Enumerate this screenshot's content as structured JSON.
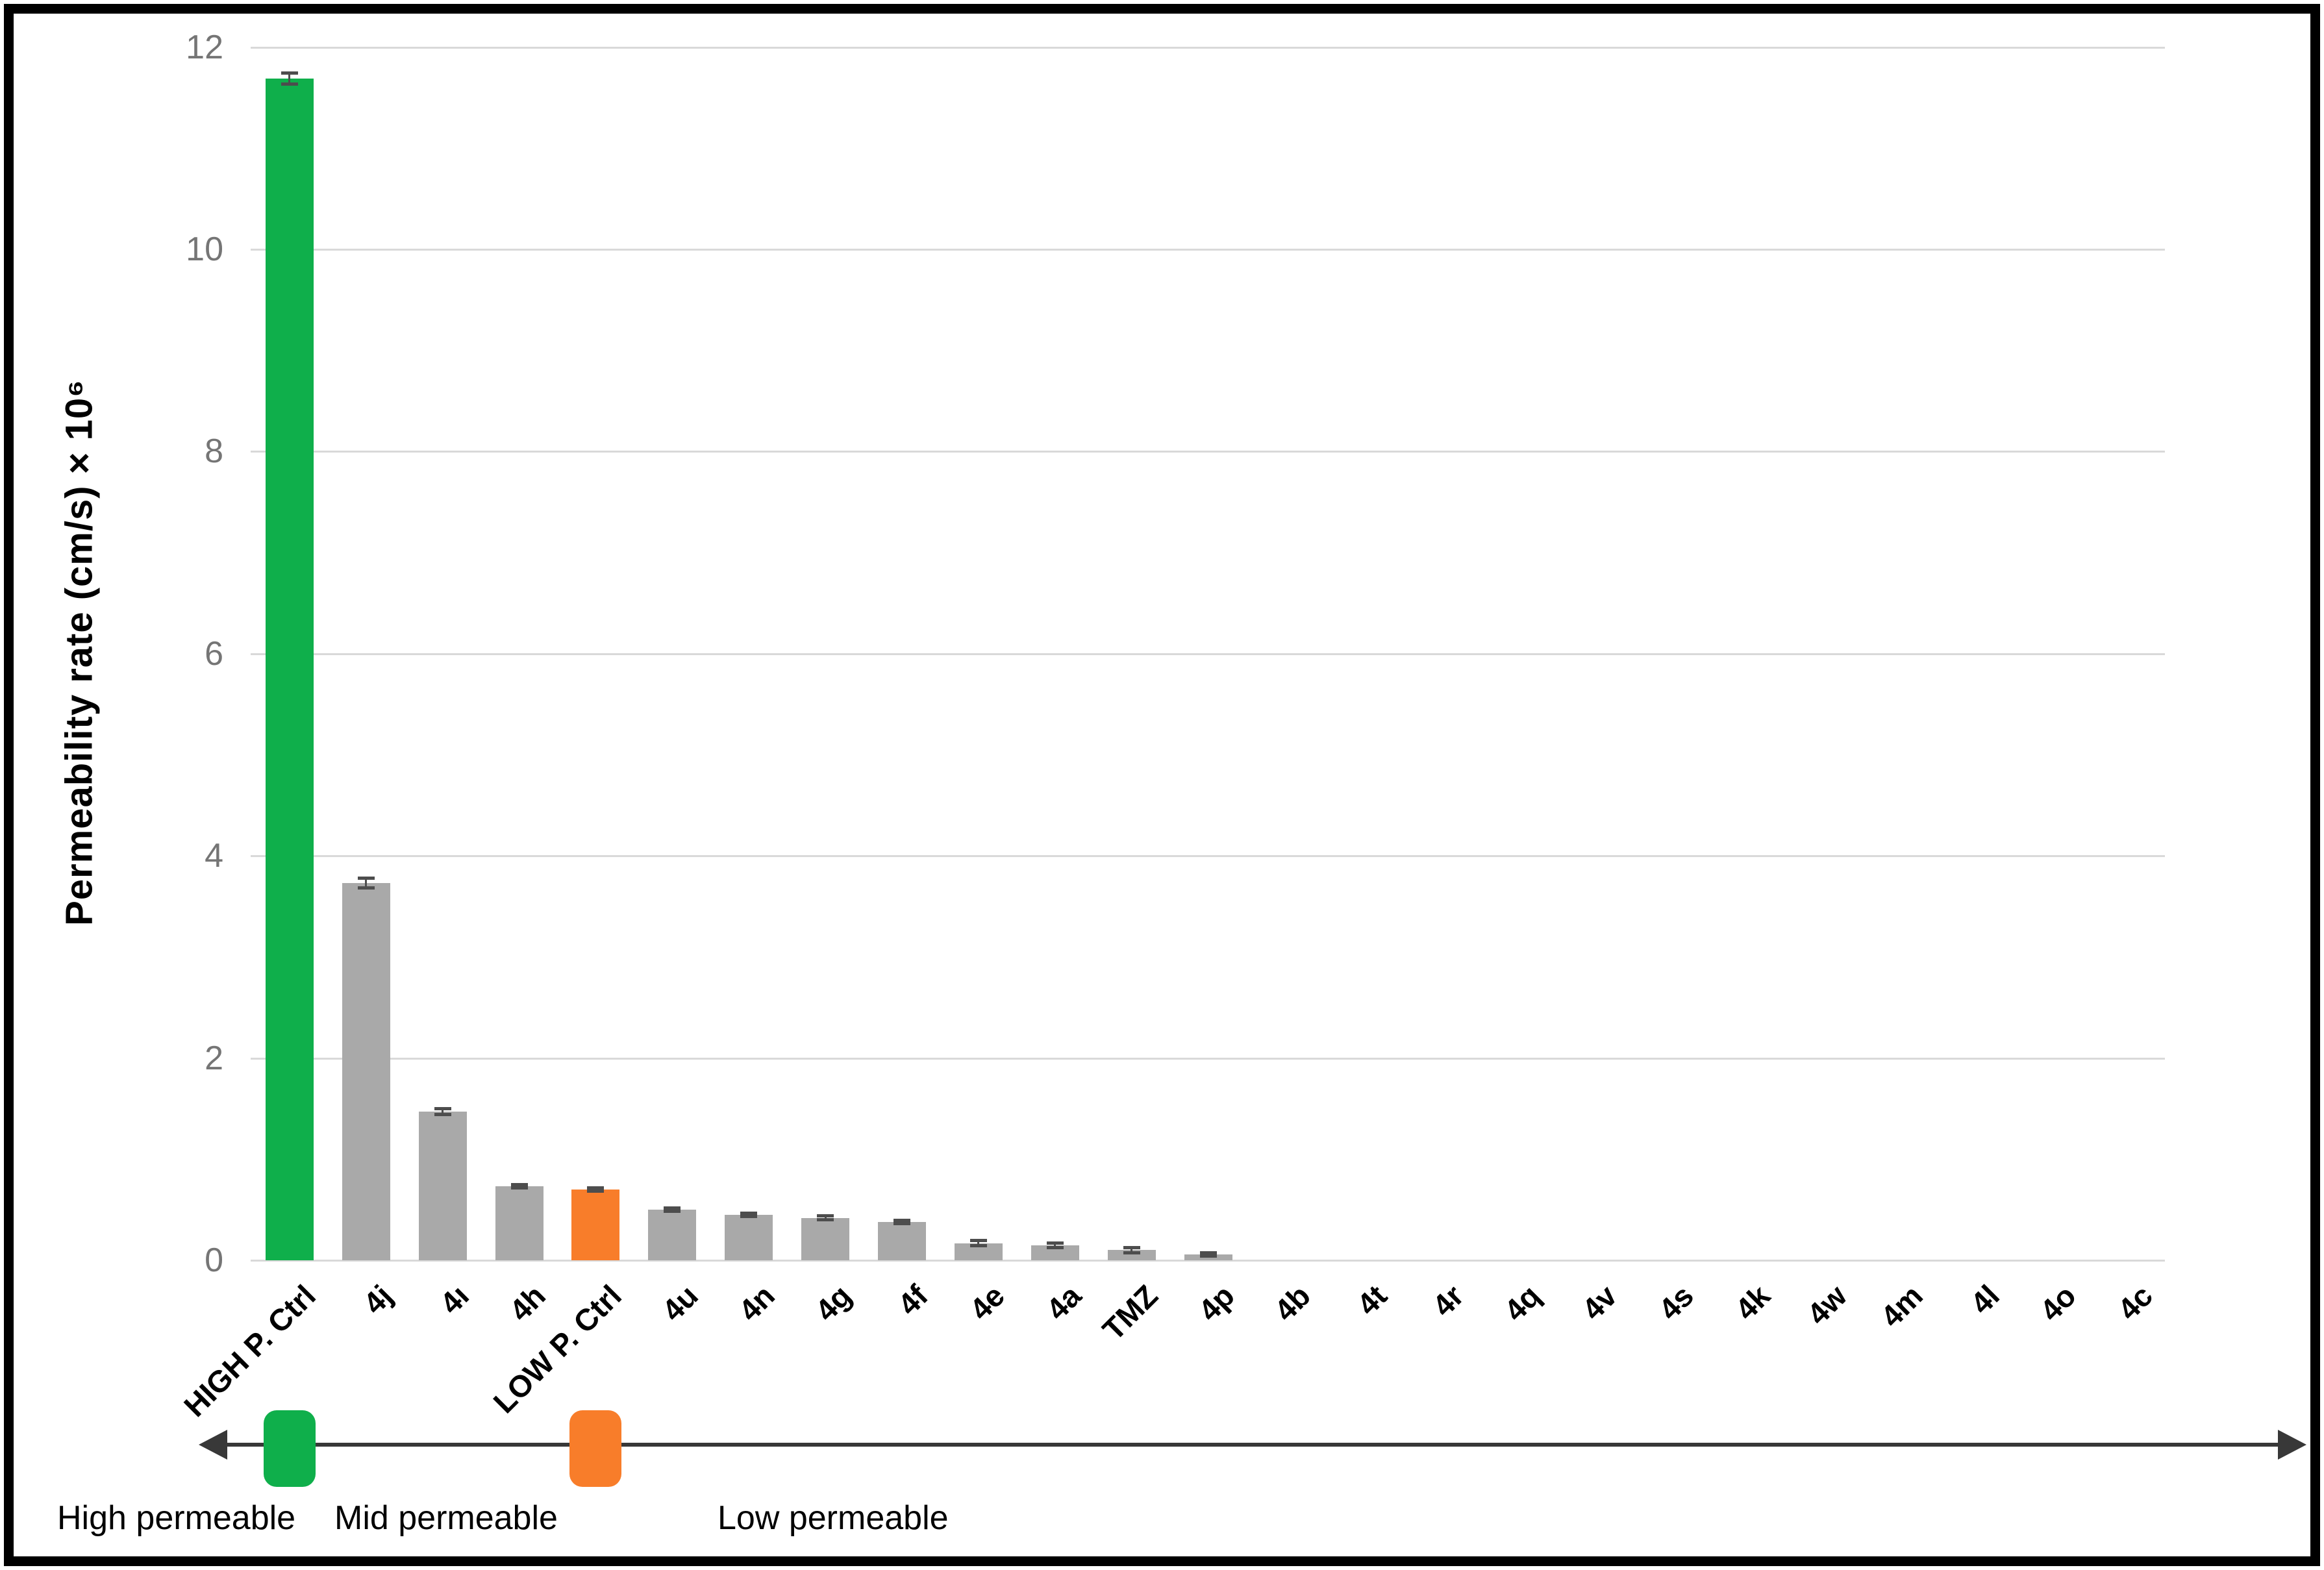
{
  "chart_data": {
    "type": "bar",
    "title": "",
    "xlabel": "",
    "ylabel": "Permeability rate (cm/s) × 10⁶",
    "ylim": [
      0,
      12
    ],
    "yticks": [
      0,
      2,
      4,
      6,
      8,
      10,
      12
    ],
    "grid": "horizontal",
    "legend_position": "none",
    "categories": [
      "HIGH P. Ctrl",
      "4j",
      "4ı",
      "4h",
      "LOW P. Ctrl",
      "4u",
      "4n",
      "4g",
      "4f",
      "4e",
      "4a",
      "TMZ",
      "4p",
      "4b",
      "4t",
      "4r",
      "4q",
      "4v",
      "4s",
      "4k",
      "4w",
      "4m",
      "4l",
      "4o",
      "4c"
    ],
    "values": [
      11.69,
      3.73,
      1.47,
      0.73,
      0.7,
      0.5,
      0.45,
      0.42,
      0.38,
      0.17,
      0.15,
      0.1,
      0.06,
      0,
      0,
      0,
      0,
      0,
      0,
      0,
      0,
      0,
      0,
      0,
      0
    ],
    "errors": [
      0.06,
      0.05,
      0.03,
      0.02,
      0.02,
      0.02,
      0.02,
      0.02,
      0.02,
      0.03,
      0.025,
      0.03,
      0.02,
      0,
      0,
      0,
      0,
      0,
      0,
      0,
      0,
      0,
      0,
      0,
      0
    ],
    "colors": {
      "default_bar": "#A9A9A9",
      "high_control_bar": "#0FAF4B",
      "low_control_bar": "#F87D2A",
      "gridline": "#D9D9D9",
      "tick_text": "#757575",
      "error_bar": "#4d4d4d"
    },
    "highlighted_categories": {
      "green": "HIGH P. Ctrl",
      "orange": "LOW P. Ctrl"
    }
  },
  "annotation": {
    "labels": {
      "high": "High permeable",
      "mid": "Mid permeable",
      "low": "Low permeable"
    },
    "markers": [
      {
        "id": "high-permeable-marker",
        "color": "#0FAF4B",
        "under_category": "HIGH P. Ctrl"
      },
      {
        "id": "low-permeable-marker",
        "color": "#F87D2A",
        "under_category": "LOW P. Ctrl"
      }
    ],
    "arrow_color": "#383838",
    "arrow_direction": "double-headed"
  }
}
